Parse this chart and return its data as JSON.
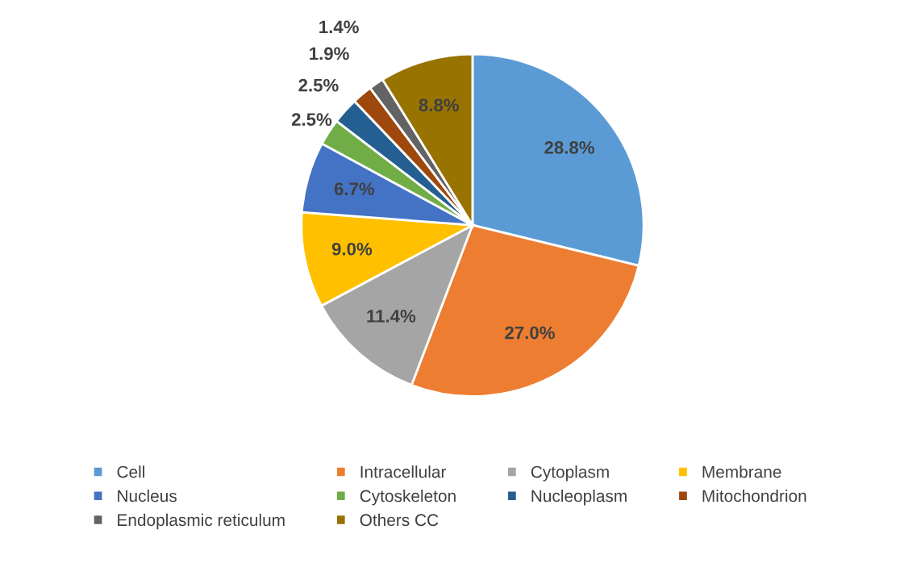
{
  "chart_data": {
    "type": "pie",
    "categories": [
      "Cell",
      "Intracellular",
      "Cytoplasm",
      "Membrane",
      "Nucleus",
      "Cytoskeleton",
      "Nucleoplasm",
      "Mitochondrion",
      "Endoplasmic reticulum",
      "Others CC"
    ],
    "values": [
      28.8,
      27.0,
      11.4,
      9.0,
      6.7,
      2.5,
      2.5,
      1.9,
      1.4,
      8.8
    ],
    "value_labels": [
      "28.8%",
      "27.0%",
      "11.4%",
      "9.0%",
      "6.7%",
      "2.5%",
      "2.5%",
      "1.9%",
      "1.4%",
      "8.8%"
    ],
    "colors": [
      "#5b9bd5",
      "#ed7d31",
      "#a5a5a5",
      "#ffc000",
      "#4472c4",
      "#70ad47",
      "#255e91",
      "#9e480e",
      "#636363",
      "#997300"
    ],
    "legend": "bottom"
  }
}
